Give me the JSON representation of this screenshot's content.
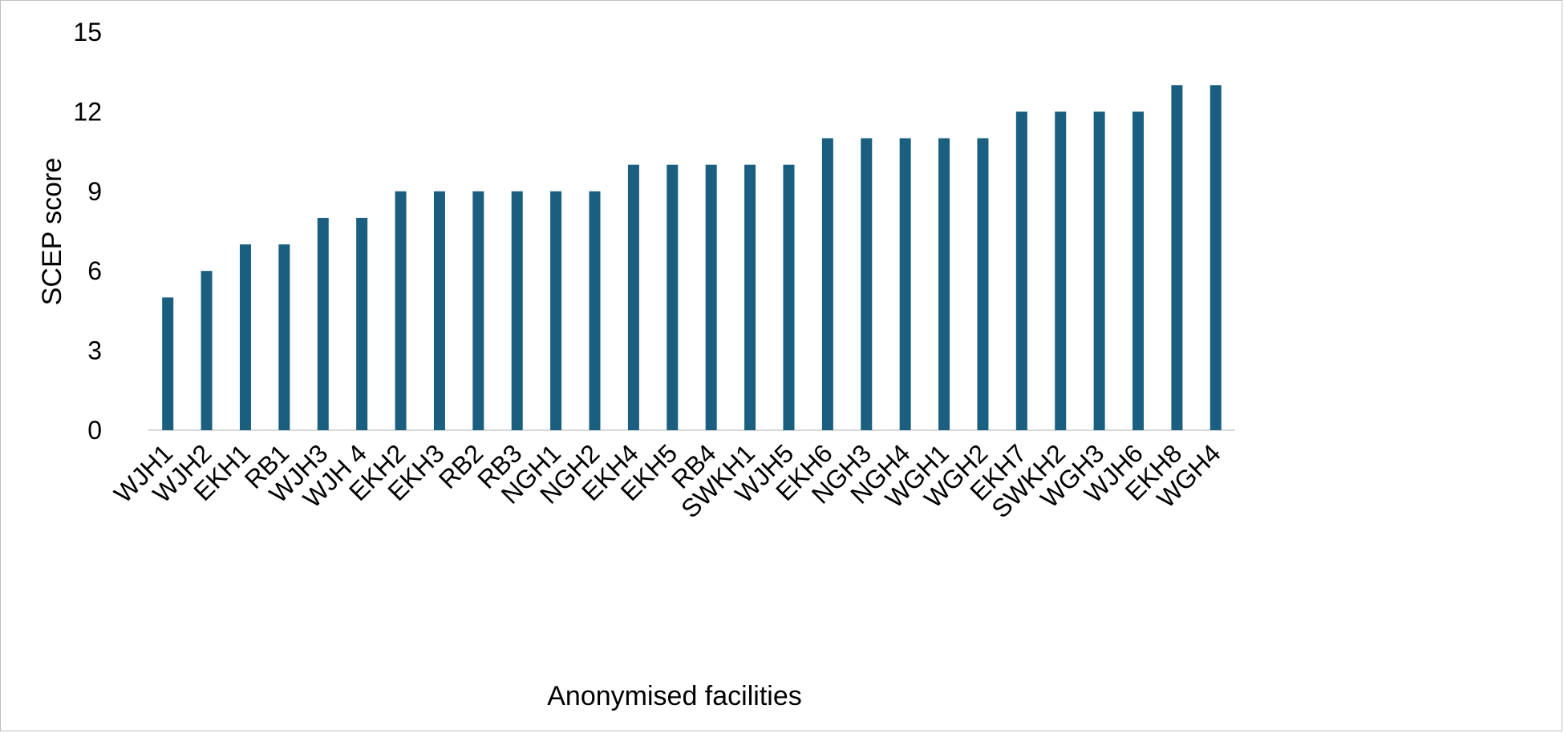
{
  "chart_data": {
    "type": "bar",
    "title": "",
    "xlabel": "Anonymised facilities",
    "ylabel": "SCEP score",
    "ylim": [
      0,
      15
    ],
    "yticks": [
      0,
      3,
      6,
      9,
      12,
      15
    ],
    "grid": false,
    "legend": "none",
    "bar_color": "#1a5f7f",
    "categories": [
      "WJH1",
      "WJH2",
      "EKH1",
      "RB1",
      "WJH3",
      "WJH 4",
      "EKH2",
      "EKH3",
      "RB2",
      "RB3",
      "NGH1",
      "NGH2",
      "EKH4",
      "EKH5",
      "RB4",
      "SWKH1",
      "WJH5",
      "EKH6",
      "NGH3",
      "NGH4",
      "WGH1",
      "WGH2",
      "EKH7",
      "SWKH2",
      "WGH3",
      "WJH6",
      "EKH8",
      "WGH4"
    ],
    "values": [
      5,
      6,
      7,
      7,
      8,
      8,
      9,
      9,
      9,
      9,
      9,
      9,
      10,
      10,
      10,
      10,
      10,
      11,
      11,
      11,
      11,
      11,
      12,
      12,
      12,
      12,
      13,
      13
    ]
  }
}
